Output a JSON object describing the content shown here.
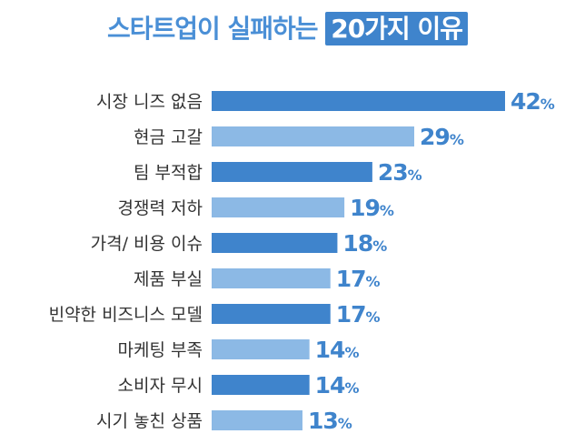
{
  "chart_data": {
    "type": "bar",
    "orientation": "horizontal",
    "title_main": "스타트업이 실패하는",
    "title_highlight": "20가지 이유",
    "categories": [
      "시장 니즈 없음",
      "현금 고갈",
      "팀 부적합",
      "경쟁력 저하",
      "가격/ 비용 이슈",
      "제품 부실",
      "빈약한 비즈니스 모델",
      "마케팅 부족",
      "소비자 무시",
      "시기 놓친 상품"
    ],
    "values": [
      42,
      29,
      23,
      19,
      18,
      17,
      17,
      14,
      14,
      13
    ],
    "value_suffix": "%",
    "xlim": [
      0,
      42
    ],
    "grid": false,
    "legend": "none",
    "colors": {
      "dark": "#3f84cc",
      "light": "#8cb9e5",
      "text": "#3f84cc",
      "title": "#4a8fd6"
    }
  }
}
